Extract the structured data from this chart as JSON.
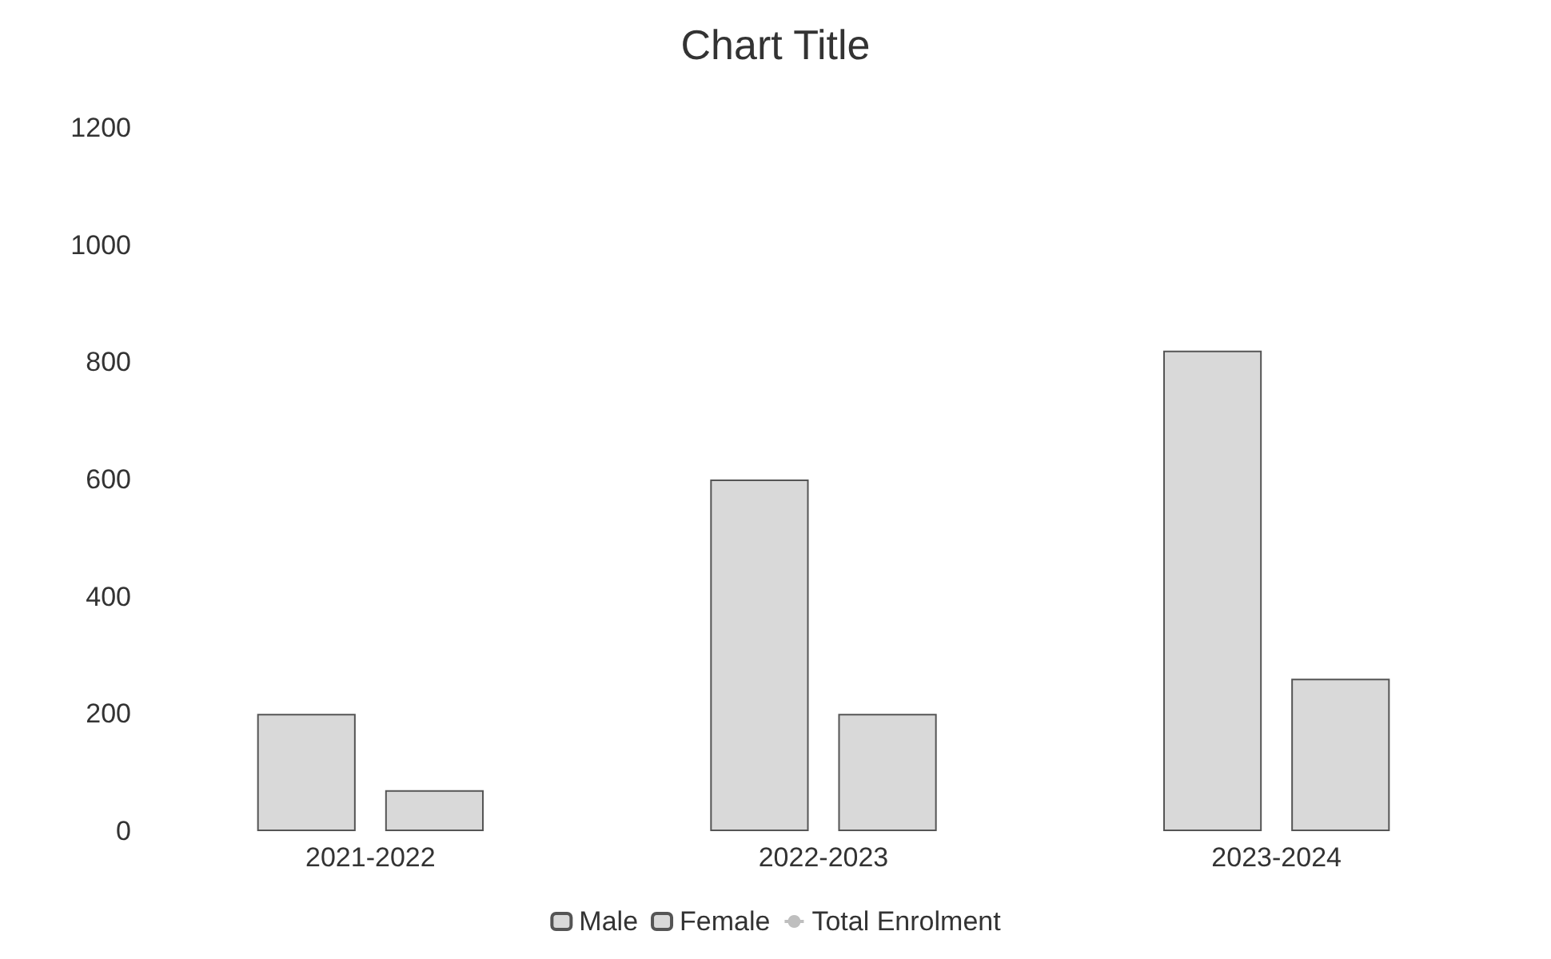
{
  "chart_data": {
    "type": "bar",
    "title": "Chart Title",
    "categories": [
      "2021-2022",
      "2022-2023",
      "2023-2024"
    ],
    "series": [
      {
        "name": "Male",
        "color": "#d9d9d9",
        "values": [
          200,
          600,
          820
        ]
      },
      {
        "name": "Female",
        "color": "#d9d9d9",
        "values": [
          70,
          200,
          260
        ]
      },
      {
        "name": "Total Enrolment",
        "type": "line",
        "color": "#bfbfbf",
        "values": [
          null,
          null,
          null
        ]
      }
    ],
    "ylim": [
      0,
      1200
    ],
    "yticks": [
      0,
      200,
      400,
      600,
      800,
      1000,
      1200
    ],
    "grid": false,
    "legend": "bottom"
  }
}
